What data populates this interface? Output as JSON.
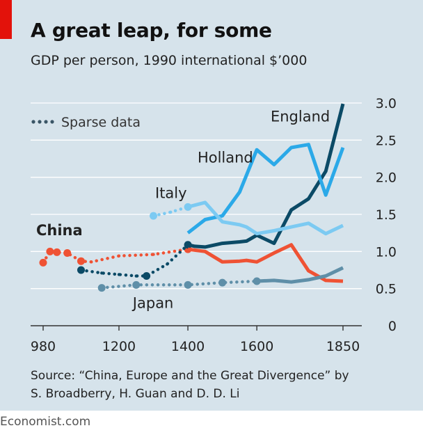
{
  "header": {
    "title": "A great leap, for some",
    "subtitle": "GDP per person, 1990 international $’000"
  },
  "footer": {
    "source_line1": "Source: “China, Europe and the Great Divergence” by",
    "source_line2": "S. Broadberry, H. Guan and D. D. Li",
    "brand": "Economist.com"
  },
  "colors": {
    "background": "#d6e3eb",
    "accent": "#e3120b",
    "England": "#0b4a66",
    "Holland": "#2ba9e8",
    "Italy": "#7ccaf2",
    "China": "#ef5234",
    "Japan": "#5f8fa8"
  },
  "chart_data": {
    "type": "line",
    "xlim": [
      960,
      1880
    ],
    "ylim": [
      0,
      3.0
    ],
    "x_ticks": [
      980,
      1200,
      1400,
      1600,
      1850
    ],
    "x_tick_labels": [
      "980",
      "1200",
      "1400",
      "1600",
      "1850"
    ],
    "y_ticks": [
      0,
      0.5,
      1.0,
      1.5,
      2.0,
      2.5,
      3.0
    ],
    "y_tick_labels": [
      "0",
      "0.5",
      "1.0",
      "1.5",
      "2.0",
      "2.5",
      "3.0"
    ],
    "y_axis_side": "right",
    "grid": "horizontal",
    "legend": {
      "label": "Sparse data",
      "placement": "top-left",
      "style": "dotted"
    },
    "series": [
      {
        "name": "England",
        "label_x": 1640,
        "label_y": 2.75,
        "sparse_points": [],
        "values": [
          [
            1400,
            1.09
          ],
          [
            1420,
            1.07
          ],
          [
            1450,
            1.06
          ],
          [
            1500,
            1.11
          ],
          [
            1550,
            1.13
          ],
          [
            1570,
            1.14
          ],
          [
            1600,
            1.22
          ],
          [
            1650,
            1.11
          ],
          [
            1700,
            1.56
          ],
          [
            1750,
            1.71
          ],
          [
            1800,
            2.08
          ],
          [
            1850,
            2.99
          ]
        ]
      },
      {
        "name": "Holland",
        "label_x": 1428,
        "label_y": 2.2,
        "sparse_points": [],
        "values": [
          [
            1400,
            1.25
          ],
          [
            1450,
            1.43
          ],
          [
            1500,
            1.48
          ],
          [
            1550,
            1.8
          ],
          [
            1600,
            2.37
          ],
          [
            1650,
            2.17
          ],
          [
            1700,
            2.4
          ],
          [
            1750,
            2.44
          ],
          [
            1800,
            1.76
          ],
          [
            1850,
            2.4
          ]
        ]
      },
      {
        "name": "Italy",
        "label_x": 1305,
        "label_y": 1.72,
        "sparse_points": [
          [
            1300,
            1.48
          ],
          [
            1350,
            1.53
          ],
          [
            1400,
            1.6
          ]
        ],
        "values": [
          [
            1400,
            1.6
          ],
          [
            1450,
            1.66
          ],
          [
            1500,
            1.4
          ],
          [
            1550,
            1.36
          ],
          [
            1570,
            1.33
          ],
          [
            1600,
            1.24
          ],
          [
            1650,
            1.28
          ],
          [
            1700,
            1.33
          ],
          [
            1750,
            1.38
          ],
          [
            1800,
            1.24
          ],
          [
            1850,
            1.35
          ]
        ]
      },
      {
        "name": "China",
        "label_x": 980,
        "label_y": 1.22,
        "sparse_points": [
          [
            980,
            0.85
          ],
          [
            1000,
            1.0
          ],
          [
            1020,
            0.99
          ],
          [
            1050,
            0.98
          ],
          [
            1090,
            0.87
          ],
          [
            1120,
            0.86
          ],
          [
            1200,
            0.94
          ],
          [
            1300,
            0.96
          ],
          [
            1400,
            1.03
          ]
        ],
        "values": [
          [
            1400,
            1.03
          ],
          [
            1450,
            1.0
          ],
          [
            1500,
            0.86
          ],
          [
            1550,
            0.87
          ],
          [
            1570,
            0.88
          ],
          [
            1600,
            0.86
          ],
          [
            1650,
            0.98
          ],
          [
            1700,
            1.09
          ],
          [
            1750,
            0.74
          ],
          [
            1800,
            0.61
          ],
          [
            1850,
            0.6
          ]
        ]
      },
      {
        "name": "Japan",
        "label_x": 1240,
        "label_y": 0.24,
        "sparse_points": [
          [
            1150,
            0.51
          ],
          [
            1250,
            0.55
          ],
          [
            1400,
            0.55
          ],
          [
            1500,
            0.58
          ],
          [
            1600,
            0.6
          ]
        ],
        "values": [
          [
            1600,
            0.6
          ],
          [
            1650,
            0.61
          ],
          [
            1700,
            0.59
          ],
          [
            1750,
            0.62
          ],
          [
            1800,
            0.67
          ],
          [
            1850,
            0.78
          ]
        ]
      },
      {
        "name": "England",
        "label_x": null,
        "label_y": null,
        "sparse_points": [
          [
            1090,
            0.75
          ],
          [
            1150,
            0.71
          ],
          [
            1200,
            0.69
          ],
          [
            1250,
            0.67
          ],
          [
            1280,
            0.67
          ],
          [
            1340,
            0.83
          ],
          [
            1400,
            1.09
          ]
        ],
        "values": []
      }
    ]
  }
}
